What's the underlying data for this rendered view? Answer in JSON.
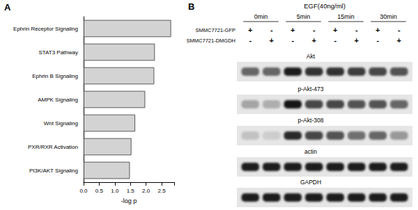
{
  "panel_labels": [
    "A",
    "B"
  ],
  "chart_data": {
    "type": "bar",
    "orientation": "horizontal",
    "categories": [
      "Ephrin Receptor Signaling",
      "STAT3 Pathway",
      "Ephrin B Signaling",
      "AMPK Signaling",
      "Wnt Signaling",
      "PXR/RXR Activation",
      "PI3K/AKT Signaling"
    ],
    "values": [
      2.8,
      2.28,
      2.26,
      1.97,
      1.65,
      1.53,
      1.48
    ],
    "color": "#d3d3d3",
    "x_label": "-log p",
    "xlim": [
      0,
      2.9
    ],
    "xticks": [
      {
        "value": 0,
        "label": "0.0"
      },
      0.5,
      {
        "value": 1,
        "label": "1.0"
      },
      1.5,
      {
        "value": 2,
        "label": "2.0"
      },
      2.5
    ],
    "grid": false
  },
  "blot": {
    "treatment": "EGF(40ng/ml)",
    "times": [
      "0min",
      "5min",
      "15min",
      "30min"
    ],
    "conditions": [
      {
        "label": "SMMC7721-GFP",
        "marks": [
          "+",
          "-",
          "+",
          "-",
          "+",
          "-",
          "+",
          "-"
        ]
      },
      {
        "label": "SMMC7721-DMGDH",
        "marks": [
          "-",
          "+",
          "-",
          "+",
          "-",
          "+",
          "-",
          "+"
        ]
      }
    ],
    "rows": [
      {
        "label": "Akt",
        "intensity": [
          0.6,
          0.6,
          0.95,
          0.85,
          0.85,
          0.8,
          0.75,
          0.7
        ]
      },
      {
        "label": "p-Akt-473",
        "intensity": [
          0.3,
          0.25,
          1.0,
          0.75,
          0.75,
          0.7,
          0.7,
          0.6
        ]
      },
      {
        "label": "p-Akt-308",
        "intensity": [
          0.15,
          0.1,
          0.9,
          0.75,
          0.7,
          0.55,
          0.6,
          0.35
        ]
      },
      {
        "label": "actin",
        "intensity": [
          0.95,
          0.95,
          0.95,
          0.95,
          0.95,
          0.95,
          0.95,
          0.95
        ]
      },
      {
        "label": "GAPDH",
        "intensity": [
          0.95,
          0.95,
          0.95,
          0.95,
          0.95,
          0.95,
          0.95,
          0.95
        ]
      }
    ]
  }
}
